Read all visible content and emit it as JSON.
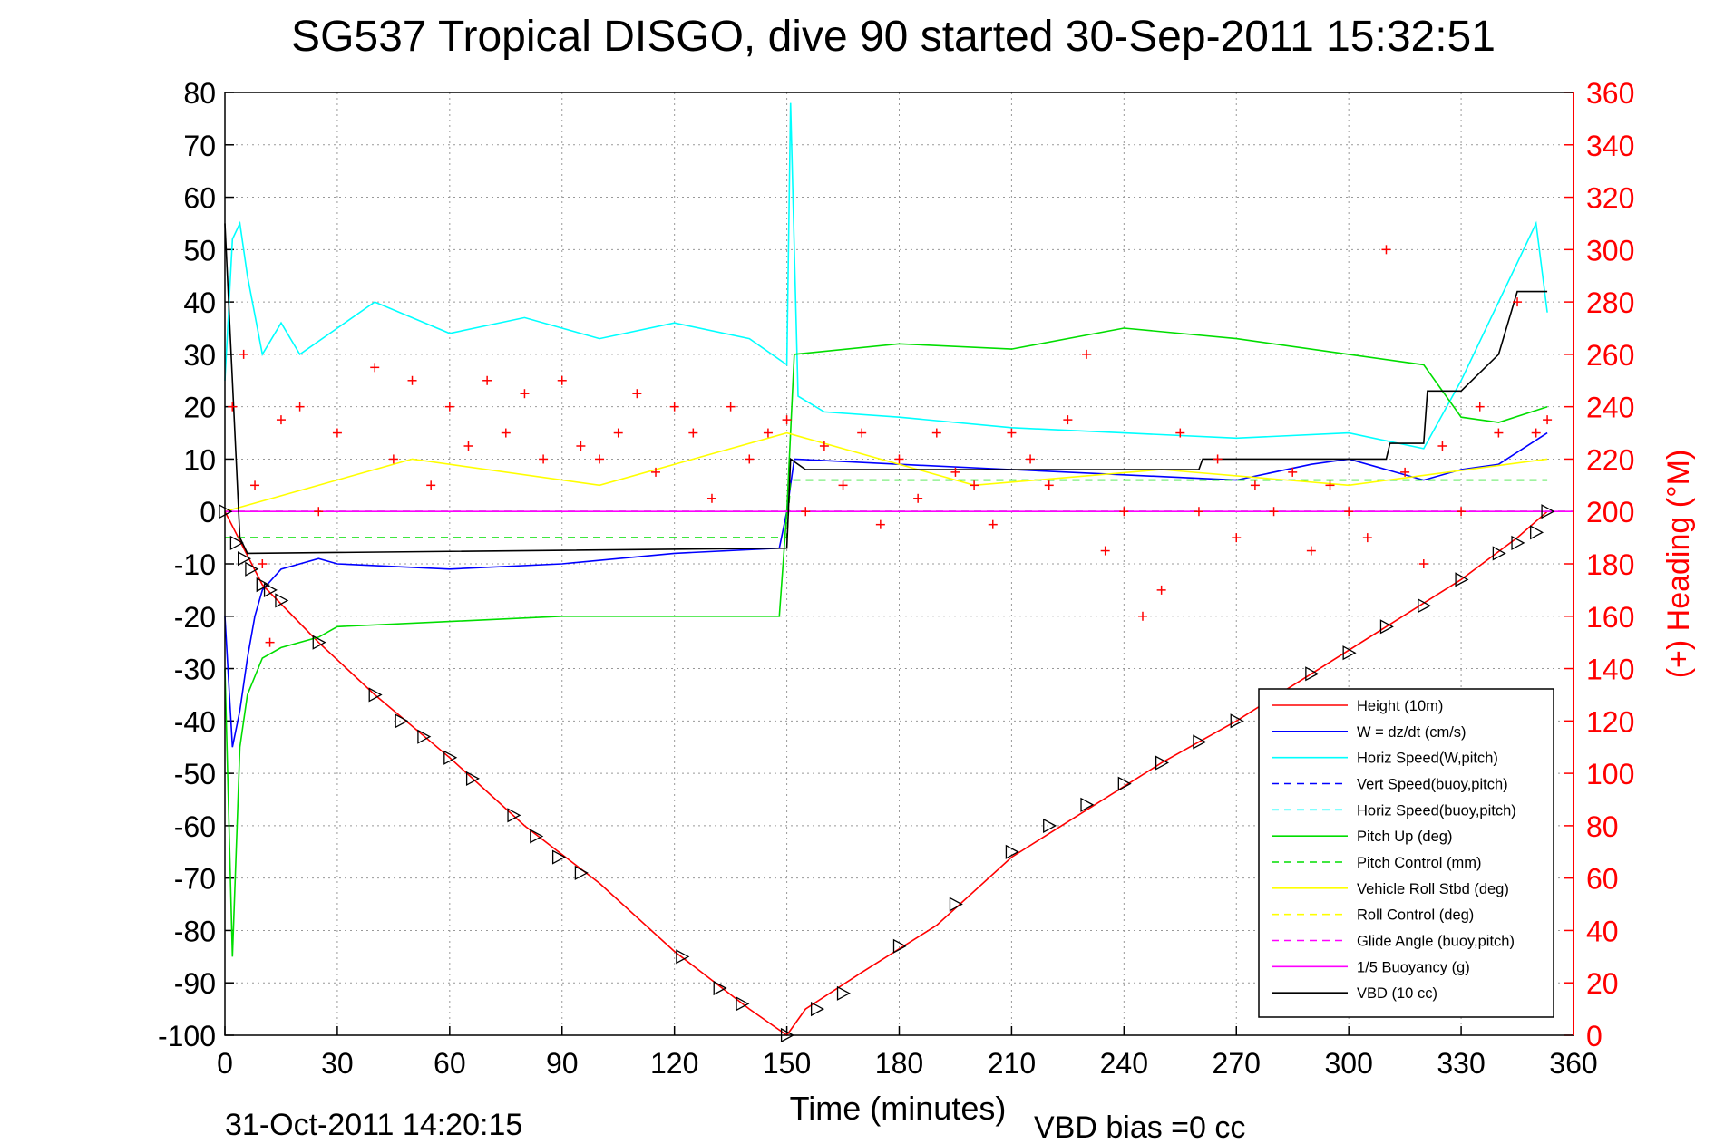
{
  "title": "SG537 Tropical DISGO, dive 90 started 30-Sep-2011 15:32:51",
  "footer": {
    "timestamp": "31-Oct-2011 14:20:15",
    "vbd_bias": "VBD bias =0 cc"
  },
  "chart_data": {
    "type": "line",
    "xlabel": "Time (minutes)",
    "ylabel": "",
    "ylabel_right": "(+) Heading (°M)",
    "xlim": [
      0,
      360
    ],
    "ylim": [
      -100,
      80
    ],
    "ylim_right": [
      0,
      360
    ],
    "x_ticks": [
      "0",
      "30",
      "60",
      "90",
      "120",
      "150",
      "180",
      "210",
      "240",
      "270",
      "300",
      "330",
      "360"
    ],
    "y_ticks": [
      "80",
      "70",
      "60",
      "50",
      "40",
      "30",
      "20",
      "10",
      "0",
      "-10",
      "-20",
      "-30",
      "-40",
      "-50",
      "-60",
      "-70",
      "-80",
      "-90",
      "-100"
    ],
    "y_ticks_right": [
      "360",
      "340",
      "320",
      "300",
      "280",
      "260",
      "240",
      "220",
      "200",
      "180",
      "160",
      "140",
      "120",
      "100",
      "80",
      "60",
      "40",
      "20",
      "0"
    ],
    "grid": true,
    "legend_position": "bottom-right",
    "series": [
      {
        "name": "Height (10m)",
        "color": "#ff0000",
        "style": "solid",
        "x": [
          0,
          10,
          25,
          40,
          60,
          80,
          100,
          120,
          140,
          150,
          155,
          170,
          190,
          210,
          230,
          250,
          270,
          290,
          310,
          330,
          345,
          353
        ],
        "y": [
          0,
          -14,
          -25,
          -35,
          -47,
          -60,
          -71,
          -84,
          -95,
          -100,
          -95,
          -88,
          -79,
          -66,
          -57,
          -48,
          -40,
          -31,
          -22,
          -13,
          -5,
          0
        ]
      },
      {
        "name": "W = dz/dt (cm/s)",
        "color": "#0000ff",
        "style": "solid",
        "x": [
          0,
          2,
          4,
          6,
          8,
          10,
          15,
          20,
          25,
          30,
          60,
          90,
          120,
          148,
          150,
          152,
          180,
          210,
          240,
          270,
          290,
          300,
          310,
          320,
          330,
          340,
          353
        ],
        "y": [
          -20,
          -45,
          -38,
          -28,
          -20,
          -15,
          -11,
          -10,
          -9,
          -10,
          -11,
          -10,
          -8,
          -7,
          0,
          10,
          9,
          8,
          7,
          6,
          9,
          10,
          8,
          6,
          8,
          9,
          15
        ]
      },
      {
        "name": "Horiz Speed(W,pitch)",
        "color": "#00ffff",
        "style": "solid",
        "x": [
          0,
          2,
          4,
          6,
          10,
          15,
          20,
          30,
          40,
          60,
          80,
          100,
          120,
          140,
          150,
          151,
          153,
          160,
          180,
          210,
          240,
          270,
          300,
          320,
          330,
          340,
          350,
          353
        ],
        "y": [
          25,
          52,
          55,
          45,
          30,
          36,
          30,
          35,
          40,
          34,
          37,
          33,
          36,
          33,
          28,
          78,
          22,
          19,
          18,
          16,
          15,
          14,
          15,
          12,
          25,
          40,
          55,
          38
        ]
      },
      {
        "name": "Vert Speed(buoy,pitch)",
        "color": "#0000ff",
        "style": "dashed",
        "x": [
          0,
          360
        ],
        "y": [
          0,
          0
        ]
      },
      {
        "name": "Horiz Speed(buoy,pitch)",
        "color": "#00ffff",
        "style": "dashed",
        "x": [
          0,
          360
        ],
        "y": [
          0,
          0
        ]
      },
      {
        "name": "Pitch Up (deg)",
        "color": "#00dd00",
        "style": "solid",
        "x": [
          0,
          2,
          4,
          6,
          10,
          15,
          25,
          30,
          60,
          90,
          120,
          148,
          150,
          152,
          180,
          210,
          240,
          270,
          300,
          320,
          330,
          340,
          353
        ],
        "y": [
          -30,
          -85,
          -45,
          -35,
          -28,
          -26,
          -24,
          -22,
          -21,
          -20,
          -20,
          -20,
          0,
          30,
          32,
          31,
          35,
          33,
          30,
          28,
          18,
          17,
          20
        ]
      },
      {
        "name": "Pitch Control (mm)",
        "color": "#00dd00",
        "style": "dashed",
        "x": [
          0,
          10,
          150,
          151,
          300,
          353
        ],
        "y": [
          -5,
          -5,
          -5,
          6,
          6,
          6
        ]
      },
      {
        "name": "Vehicle Roll Stbd (deg)",
        "color": "#ffff00",
        "style": "solid",
        "x": [
          0,
          50,
          100,
          150,
          200,
          250,
          300,
          353
        ],
        "y": [
          0,
          10,
          5,
          15,
          5,
          8,
          5,
          10
        ]
      },
      {
        "name": "Roll Control (deg)",
        "color": "#ffff00",
        "style": "dashed",
        "x": [
          0,
          360
        ],
        "y": [
          0,
          0
        ]
      },
      {
        "name": "Glide Angle (buoy,pitch)",
        "color": "#ff00ff",
        "style": "dashed",
        "x": [
          0,
          360
        ],
        "y": [
          0,
          0
        ]
      },
      {
        "name": "1/5 Buoyancy (g)",
        "color": "#ff00ff",
        "style": "solid",
        "x": [
          0,
          360
        ],
        "y": [
          0,
          0
        ]
      },
      {
        "name": "VBD (10 cc)",
        "color": "#000000",
        "style": "solid",
        "x": [
          0,
          4,
          6,
          150,
          151,
          155,
          260,
          261,
          310,
          311,
          320,
          321,
          330,
          340,
          345,
          353
        ],
        "y": [
          55,
          -5,
          -8,
          -7,
          10,
          8,
          8,
          10,
          10,
          13,
          13,
          23,
          23,
          30,
          42,
          42
        ]
      }
    ],
    "heading": {
      "color": "#ff0000",
      "marker": "+",
      "axis": "right",
      "x": [
        2,
        5,
        8,
        10,
        12,
        15,
        20,
        25,
        30,
        40,
        45,
        50,
        55,
        60,
        65,
        70,
        75,
        80,
        85,
        90,
        95,
        100,
        105,
        110,
        115,
        120,
        125,
        130,
        135,
        140,
        145,
        150,
        155,
        160,
        165,
        170,
        175,
        180,
        185,
        190,
        195,
        200,
        205,
        210,
        215,
        220,
        225,
        230,
        235,
        240,
        245,
        250,
        255,
        260,
        265,
        270,
        275,
        280,
        285,
        290,
        295,
        300,
        305,
        310,
        315,
        320,
        325,
        330,
        335,
        340,
        345,
        350,
        353
      ],
      "y": [
        240,
        260,
        210,
        180,
        150,
        235,
        240,
        200,
        230,
        255,
        220,
        250,
        210,
        240,
        225,
        250,
        230,
        245,
        220,
        250,
        225,
        220,
        230,
        245,
        215,
        240,
        230,
        205,
        240,
        220,
        230,
        235,
        200,
        225,
        210,
        230,
        195,
        220,
        205,
        230,
        215,
        210,
        195,
        230,
        220,
        210,
        235,
        260,
        185,
        200,
        160,
        170,
        230,
        200,
        220,
        190,
        210,
        200,
        215,
        185,
        210,
        200,
        190,
        300,
        215,
        180,
        225,
        200,
        240,
        230,
        280,
        230,
        235
      ]
    },
    "triangles": {
      "color": "#000000",
      "x": [
        0,
        3,
        5,
        7,
        10,
        12,
        15,
        25,
        40,
        47,
        53,
        60,
        66,
        77,
        83,
        89,
        95,
        122,
        132,
        138,
        150,
        158,
        165,
        180,
        195,
        210,
        220,
        230,
        240,
        250,
        260,
        270,
        280,
        290,
        300,
        310,
        320,
        330,
        340,
        345,
        350,
        353
      ],
      "y": [
        0,
        -6,
        -9,
        -11,
        -14,
        -15,
        -17,
        -25,
        -35,
        -40,
        -43,
        -47,
        -51,
        -58,
        -62,
        -66,
        -69,
        -85,
        -91,
        -94,
        -100,
        -95,
        -92,
        -83,
        -75,
        -65,
        -60,
        -56,
        -52,
        -48,
        -44,
        -40,
        -36,
        -31,
        -27,
        -22,
        -18,
        -13,
        -8,
        -6,
        -4,
        0
      ]
    }
  }
}
